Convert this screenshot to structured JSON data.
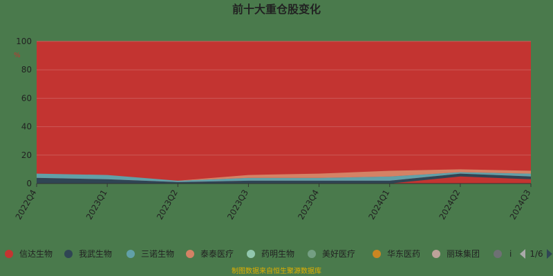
{
  "chart_data": {
    "type": "area",
    "title": "前十大重仓股变化",
    "ylabel": "%",
    "ylim": [
      0,
      100
    ],
    "yticks": [
      0,
      20,
      40,
      60,
      80,
      100
    ],
    "categories": [
      "2022Q4",
      "2023Q1",
      "2023Q2",
      "2023Q3",
      "2023Q4",
      "2024Q1",
      "2024Q2",
      "2024Q3"
    ],
    "grid": true,
    "legend_position": "bottom",
    "legend_page": "1/6",
    "legend_truncated_glyph": "i",
    "background_color": "#c33431",
    "series": [
      {
        "name": "信达生物",
        "color": "#c33531",
        "values": [
          0,
          0,
          0,
          0,
          0,
          0,
          5,
          3
        ]
      },
      {
        "name": "我武生物",
        "color": "#2f4554",
        "values": [
          4,
          3,
          1,
          2,
          2,
          2,
          2,
          2
        ]
      },
      {
        "name": "三诺生物",
        "color": "#61a0a8",
        "values": [
          3,
          3,
          1,
          2,
          2,
          3,
          1,
          2
        ]
      },
      {
        "name": "泰泰医疗",
        "color": "#d48265",
        "values": [
          0,
          0,
          0,
          2,
          3,
          4,
          2,
          2
        ]
      },
      {
        "name": "药明生物",
        "color": "#91c7ae",
        "values": [
          0,
          0,
          0,
          0,
          0,
          0,
          0,
          0
        ]
      },
      {
        "name": "美好医疗",
        "color": "#749f83",
        "values": [
          0,
          0,
          0,
          0,
          0,
          0,
          0,
          0
        ]
      },
      {
        "name": "华东医药",
        "color": "#ca8622",
        "values": [
          0,
          0,
          0,
          0,
          0,
          0,
          0,
          0
        ]
      },
      {
        "name": "丽珠集团",
        "color": "#bda29a",
        "values": [
          0,
          0,
          0,
          0,
          0,
          0,
          0,
          0
        ]
      },
      {
        "name": "",
        "color": "#6e7074",
        "values": [
          0,
          0,
          0,
          0,
          0,
          0,
          0,
          0
        ]
      }
    ]
  },
  "footer": {
    "source": "制图数据来自恒生聚源数据库"
  }
}
